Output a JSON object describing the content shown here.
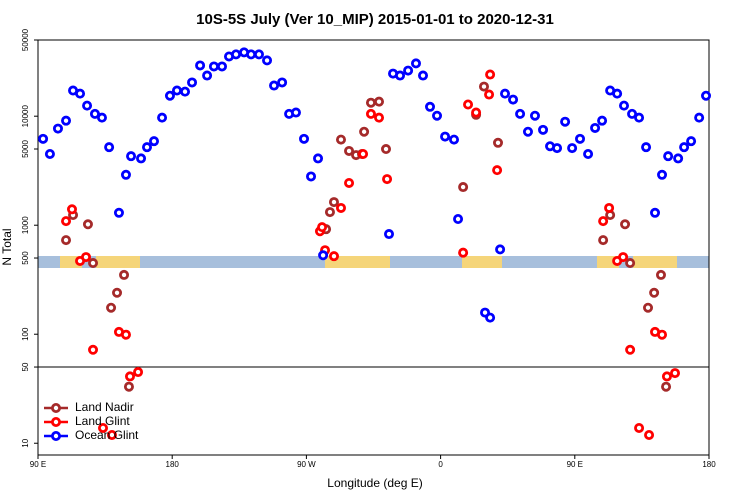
{
  "chart_data": {
    "type": "scatter",
    "title": "10S-5S July (Ver 10_MIP)   2015-01-01 to 2020-12-31",
    "x_label": "Longitude (deg E)",
    "y_label": "N Total",
    "xlim": [
      90,
      540
    ],
    "ylim": [
      7.8,
      50000
    ],
    "ylog": true,
    "reference_line": 50,
    "legend": "lower left",
    "xticks": [
      {
        "value": 90,
        "label": "90 E"
      },
      180,
      {
        "value": 270,
        "label": "90 W"
      },
      {
        "value": 360,
        "label": "0"
      },
      {
        "value": 450,
        "label": "90 E"
      },
      {
        "value": 540,
        "label": "180"
      }
    ],
    "yticks": [
      10,
      50,
      100,
      500,
      1000,
      5000,
      10000,
      50000
    ],
    "series": [
      {
        "name": "Land Nadir",
        "color": "#a52a2a",
        "x": [
          108.8,
          113.5,
          123.5,
          126.9,
          139.0,
          143.0,
          147.7,
          151.0,
          283.2,
          285.8,
          288.5,
          293.2,
          298.6,
          303.3,
          307.3,
          308.7,
          313.3,
          318.7,
          323.4,
          375.1,
          383.8,
          389.1,
          398.5,
          469.0,
          473.7,
          483.7,
          487.1,
          499.1,
          503.2,
          507.8,
          511.2
        ],
        "values": [
          730,
          1240,
          1020,
          450,
          175,
          240,
          350,
          33,
          920,
          1320,
          1630,
          6100,
          4800,
          4400,
          4500,
          7200,
          13300,
          13600,
          5000,
          2240,
          10300,
          18700,
          5700,
          730,
          1240,
          1020,
          450,
          175,
          240,
          350,
          33
        ]
      },
      {
        "name": "Land Glint",
        "color": "#ff0000",
        "x": [
          108.8,
          112.8,
          118.2,
          122.2,
          126.9,
          133.6,
          139.6,
          144.3,
          149.0,
          151.7,
          157.1,
          279.1,
          280.5,
          282.5,
          288.5,
          293.2,
          298.6,
          308.0,
          313.3,
          318.7,
          324.1,
          375.1,
          378.4,
          383.8,
          392.5,
          393.2,
          397.9,
          469.0,
          473.0,
          478.4,
          482.4,
          487.1,
          493.1,
          499.8,
          503.8,
          508.5,
          511.8,
          517.2
        ],
        "values": [
          1090,
          1400,
          470,
          510,
          72,
          13.8,
          11.9,
          105,
          99,
          41,
          45,
          880,
          960,
          590,
          520,
          1440,
          2440,
          4500,
          10500,
          9700,
          2650,
          560,
          12800,
          10800,
          15800,
          24100,
          3200,
          1090,
          1440,
          470,
          510,
          72,
          13.8,
          11.9,
          105,
          99,
          41,
          44
        ]
      },
      {
        "name": "Ocean Glint",
        "color": "#0000ff",
        "x": [
          93.4,
          98.0,
          103.4,
          108.8,
          113.5,
          118.2,
          122.9,
          128.2,
          132.9,
          137.7,
          144.3,
          149.0,
          152.4,
          159.1,
          163.1,
          167.8,
          173.2,
          178.5,
          183.2,
          188.6,
          193.3,
          198.7,
          203.4,
          208.0,
          213.4,
          218.1,
          222.8,
          228.2,
          232.9,
          238.2,
          243.6,
          248.3,
          253.7,
          258.4,
          263.0,
          268.4,
          273.1,
          277.8,
          281.2,
          325.4,
          328.1,
          332.8,
          338.2,
          343.5,
          348.2,
          352.9,
          357.6,
          363.0,
          369.0,
          371.7,
          389.8,
          393.2,
          399.9,
          403.2,
          408.6,
          413.3,
          418.6,
          423.3,
          428.7,
          433.4,
          438.1,
          443.5,
          448.2,
          453.5,
          458.9,
          463.6,
          468.3,
          473.7,
          478.4,
          483.0,
          488.4,
          493.1,
          497.8,
          503.8,
          508.5,
          512.6,
          519.3,
          523.3,
          528.0,
          533.4,
          538.0
        ],
        "values": [
          6200,
          4500,
          7700,
          9100,
          17200,
          16100,
          12500,
          10500,
          9700,
          5200,
          1300,
          2900,
          4300,
          4100,
          5200,
          5900,
          9700,
          15400,
          17200,
          16800,
          20400,
          29200,
          23600,
          28600,
          28600,
          35300,
          36900,
          38500,
          36900,
          36900,
          32500,
          19100,
          20400,
          10500,
          10800,
          6200,
          2800,
          4100,
          530,
          830,
          24600,
          23600,
          26200,
          30500,
          23600,
          12200,
          10100,
          6500,
          6100,
          1140,
          158,
          142,
          600,
          16100,
          14200,
          10500,
          7200,
          10100,
          7500,
          5300,
          5100,
          8900,
          5100,
          6200,
          4500,
          7800,
          9100,
          17200,
          16100,
          12500,
          10500,
          9700,
          5200,
          1300,
          2900,
          4300,
          4100,
          5200,
          5900,
          9700,
          15400
        ]
      }
    ]
  }
}
